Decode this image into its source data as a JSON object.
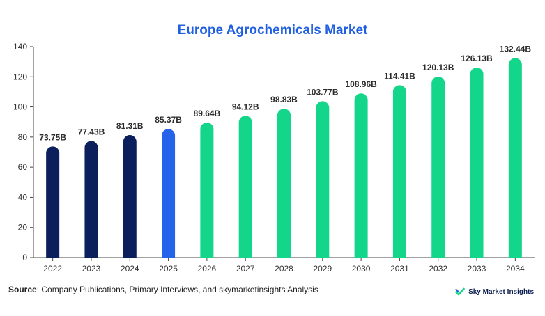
{
  "chart_data": {
    "type": "bar",
    "title": "Europe Agrochemicals Market",
    "categories": [
      "2022",
      "2023",
      "2024",
      "2025",
      "2026",
      "2027",
      "2028",
      "2029",
      "2030",
      "2031",
      "2032",
      "2033",
      "2034"
    ],
    "values": [
      73.75,
      77.43,
      81.31,
      85.37,
      89.64,
      94.12,
      98.83,
      103.77,
      108.96,
      114.41,
      120.13,
      126.13,
      132.44
    ],
    "data_labels": [
      "73.75B",
      "77.43B",
      "81.31B",
      "85.37B",
      "89.64B",
      "94.12B",
      "98.83B",
      "103.77B",
      "108.96B",
      "114.41B",
      "120.13B",
      "126.13B",
      "132.44B"
    ],
    "bar_colors": [
      "#0b1f5c",
      "#0b1f5c",
      "#0b1f5c",
      "#2563eb",
      "#13d68a",
      "#13d68a",
      "#13d68a",
      "#13d68a",
      "#13d68a",
      "#13d68a",
      "#13d68a",
      "#13d68a",
      "#13d68a"
    ],
    "xlabel": "",
    "ylabel": "",
    "ylim": [
      0,
      140
    ],
    "yticks": [
      0,
      20,
      40,
      60,
      80,
      100,
      120,
      140
    ],
    "grid": false,
    "legend": "none"
  },
  "source": {
    "label": "Source",
    "text": ": Company Publications, Primary Interviews, and skymarketinsights Analysis"
  },
  "brand": {
    "name": "Sky Market Insights",
    "logo_icon": "check-mark-logo-icon"
  },
  "colors": {
    "title": "#1f5fe0",
    "historical": "#0b1f5c",
    "current": "#2563eb",
    "forecast": "#13d68a",
    "axis": "#444444"
  }
}
